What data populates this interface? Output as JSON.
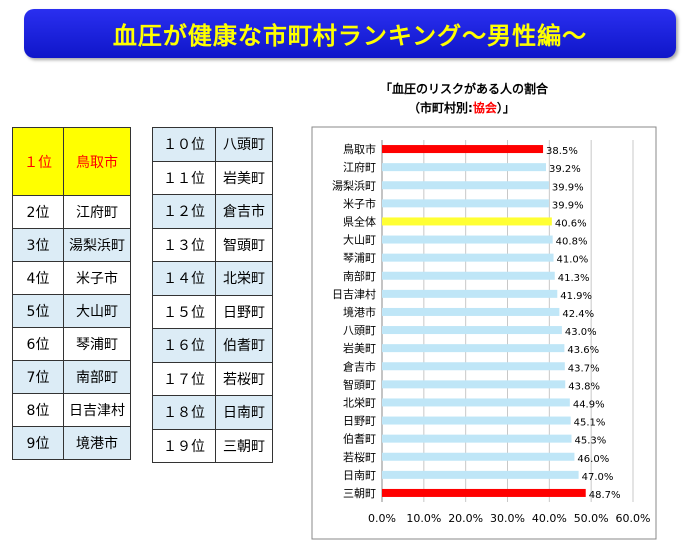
{
  "banner": {
    "title": "血圧が健康な市町村ランキング～男性編～"
  },
  "ranking_left": [
    {
      "rank": "１位",
      "name": "鳥取市"
    },
    {
      "rank": "2位",
      "name": "江府町"
    },
    {
      "rank": "3位",
      "name": "湯梨浜町"
    },
    {
      "rank": "4位",
      "name": "米子市"
    },
    {
      "rank": "5位",
      "name": "大山町"
    },
    {
      "rank": "6位",
      "name": "琴浦町"
    },
    {
      "rank": "7位",
      "name": "南部町"
    },
    {
      "rank": "8位",
      "name": "日吉津村"
    },
    {
      "rank": "9位",
      "name": "境港市"
    }
  ],
  "ranking_right": [
    {
      "rank": "１０位",
      "name": "八頭町"
    },
    {
      "rank": "１１位",
      "name": "岩美町"
    },
    {
      "rank": "１２位",
      "name": "倉吉市"
    },
    {
      "rank": "１３位",
      "name": "智頭町"
    },
    {
      "rank": "１４位",
      "name": "北栄町"
    },
    {
      "rank": "１５位",
      "name": "日野町"
    },
    {
      "rank": "１６位",
      "name": "伯耆町"
    },
    {
      "rank": "１７位",
      "name": "若桜町"
    },
    {
      "rank": "１８位",
      "name": "日南町"
    },
    {
      "rank": "１９位",
      "name": "三朝町"
    }
  ],
  "chart_title": {
    "line1": "「血圧のリスクがある人の割合",
    "line2_prefix": "（市町村別:",
    "line2_highlight": "協会",
    "line2_suffix": "）」"
  },
  "colors": {
    "bar": "#bfe6f7",
    "highlight_red": "#ff0000",
    "highlight_yellow": "#ffff33",
    "banner": "#1a1fdc",
    "banner_text": "#ffff00"
  },
  "chart_data": {
    "type": "bar",
    "orientation": "horizontal",
    "categories": [
      "鳥取市",
      "江府町",
      "湯梨浜町",
      "米子市",
      "県全体",
      "大山町",
      "琴浦町",
      "南部町",
      "日吉津村",
      "境港市",
      "八頭町",
      "岩美町",
      "倉吉市",
      "智頭町",
      "北栄町",
      "日野町",
      "伯耆町",
      "若桜町",
      "日南町",
      "三朝町"
    ],
    "values": [
      38.5,
      39.2,
      39.9,
      39.9,
      40.6,
      40.8,
      41.0,
      41.3,
      41.9,
      42.4,
      43.0,
      43.6,
      43.7,
      43.8,
      44.9,
      45.1,
      45.3,
      46.0,
      47.0,
      48.7
    ],
    "value_labels": [
      "38.5%",
      "39.2%",
      "39.9%",
      "39.9%",
      "40.6%",
      "40.8%",
      "41.0%",
      "41.3%",
      "41.9%",
      "42.4%",
      "43.0%",
      "43.6%",
      "43.7%",
      "43.8%",
      "44.9%",
      "45.1%",
      "45.3%",
      "46.0%",
      "47.0%",
      "48.7%"
    ],
    "bar_colors": [
      "red",
      "blue",
      "blue",
      "blue",
      "yellow",
      "blue",
      "blue",
      "blue",
      "blue",
      "blue",
      "blue",
      "blue",
      "blue",
      "blue",
      "blue",
      "blue",
      "blue",
      "blue",
      "blue",
      "red"
    ],
    "xlim": [
      0,
      60
    ],
    "xticks": [
      "0.0%",
      "10.0%",
      "20.0%",
      "30.0%",
      "40.0%",
      "50.0%",
      "60.0%"
    ],
    "grid": "vertical",
    "legend": "none"
  }
}
